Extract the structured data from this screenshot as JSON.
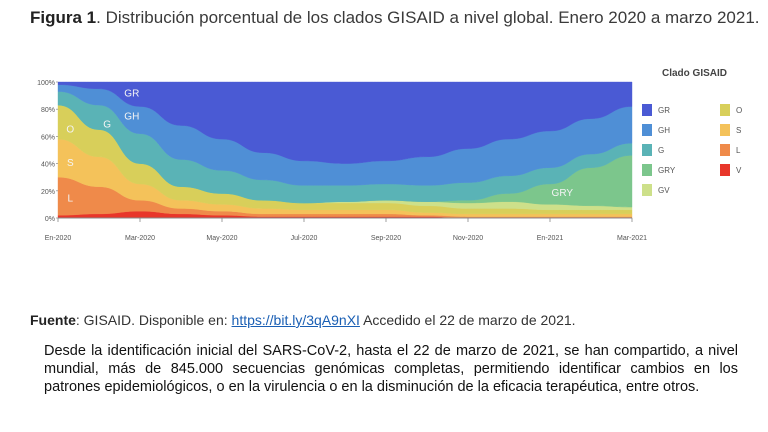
{
  "figure": {
    "label": "Figura 1",
    "title": "Distribución porcentual de los clados GISAID a nivel global. Enero 2020 a marzo 2021."
  },
  "source": {
    "label": "Fuente",
    "text": "GISAID. Disponible en:",
    "link": "https://bit.ly/3qA9nXI",
    "accessed": "Accedido el 22 de marzo de 2021."
  },
  "paragraph": "Desde la identificación inicial del SARS-CoV-2, hasta el 22 de marzo de 2021, se han compartido, a nivel mundial, más de 845.000 secuencias genómicas completas, permitiendo identificar cambios en los patrones epidemiológicos, o en la virulencia o en la disminución de la eficacia terapéutica, entre otros.",
  "chart_data": {
    "type": "area",
    "stacked": true,
    "title": "",
    "xlabel": "",
    "ylabel": "",
    "ylim": [
      0,
      100
    ],
    "x": [
      "2020-01",
      "2020-02",
      "2020-03",
      "2020-04",
      "2020-05",
      "2020-06",
      "2020-07",
      "2020-08",
      "2020-09",
      "2020-10",
      "2020-11",
      "2020-12",
      "2021-01",
      "2021-02",
      "2021-03"
    ],
    "x_tick_labels": [
      "En-2020",
      "Mar-2020",
      "May-2020",
      "Jul-2020",
      "Sep-2020",
      "Nov-2020",
      "En-2021",
      "Mar-2021"
    ],
    "x_tick_positions": [
      "2020-01",
      "2020-03",
      "2020-05",
      "2020-07",
      "2020-09",
      "2020-11",
      "2021-01",
      "2021-03"
    ],
    "y_tick_labels": [
      "0%",
      "20%",
      "40%",
      "60%",
      "80%",
      "100%"
    ],
    "y_ticks": [
      0,
      20,
      40,
      60,
      80,
      100
    ],
    "legend_title": "Clado GISAID",
    "legend_position": "right",
    "series": [
      {
        "name": "V",
        "color": "#e8362a",
        "values": [
          2,
          3,
          5,
          3,
          2,
          1,
          1,
          1,
          1,
          1,
          0,
          0,
          0,
          0,
          0
        ]
      },
      {
        "name": "L",
        "color": "#ef8a4a",
        "values": [
          28,
          20,
          8,
          4,
          3,
          2,
          2,
          2,
          2,
          1,
          1,
          1,
          1,
          1,
          1
        ]
      },
      {
        "name": "S",
        "color": "#f4c25a",
        "values": [
          28,
          22,
          12,
          6,
          5,
          4,
          3,
          3,
          3,
          2,
          2,
          2,
          2,
          2,
          2
        ]
      },
      {
        "name": "O",
        "color": "#d8cf5a",
        "values": [
          25,
          20,
          15,
          10,
          8,
          6,
          5,
          5,
          5,
          5,
          4,
          4,
          3,
          3,
          3
        ]
      },
      {
        "name": "GV",
        "color": "#cde08a",
        "values": [
          0,
          0,
          0,
          0,
          0,
          0,
          0,
          1,
          2,
          3,
          4,
          5,
          4,
          3,
          2
        ]
      },
      {
        "name": "GRY",
        "color": "#7cc68c",
        "values": [
          0,
          0,
          0,
          0,
          0,
          0,
          0,
          0,
          0,
          0,
          2,
          6,
          15,
          28,
          38
        ]
      },
      {
        "name": "G",
        "color": "#5ab3b6",
        "values": [
          10,
          18,
          22,
          20,
          17,
          15,
          13,
          12,
          12,
          12,
          13,
          13,
          12,
          10,
          9
        ]
      },
      {
        "name": "GH",
        "color": "#4f8fd6",
        "values": [
          5,
          12,
          20,
          25,
          23,
          20,
          18,
          16,
          17,
          21,
          25,
          27,
          27,
          26,
          27
        ]
      },
      {
        "name": "GR",
        "color": "#4a5ad4",
        "values": [
          2,
          5,
          18,
          32,
          42,
          52,
          58,
          60,
          58,
          55,
          49,
          42,
          36,
          27,
          18
        ]
      }
    ],
    "annotations": [
      "GR",
      "GH",
      "G",
      "O",
      "S",
      "L",
      "GRY"
    ]
  }
}
